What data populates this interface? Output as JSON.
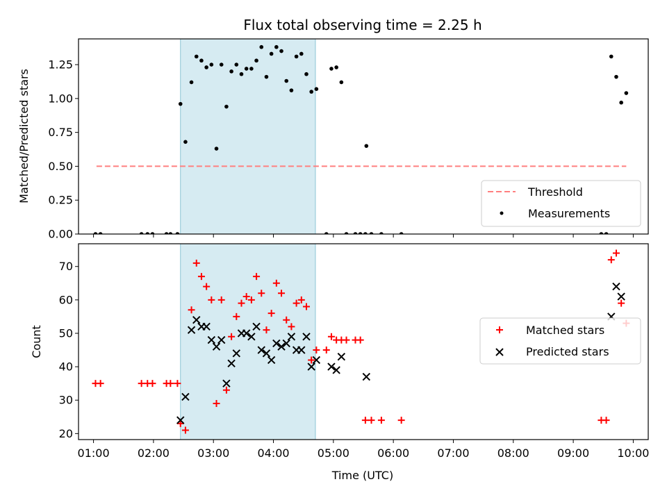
{
  "chart_data": [
    {
      "type": "scatter",
      "title": "Flux total observing time = 2.25 h",
      "ylabel": "Matched/Predicted stars",
      "xlabel": "",
      "xlim": [
        "00:45",
        "10:15"
      ],
      "ylim": [
        0,
        1.44
      ],
      "xticks": [
        "01:00",
        "02:00",
        "03:00",
        "04:00",
        "05:00",
        "06:00",
        "07:00",
        "08:00",
        "09:00",
        "10:00"
      ],
      "yticks": [
        "0.00",
        "0.25",
        "0.50",
        "0.75",
        "1.00",
        "1.25"
      ],
      "yticks_values": [
        0,
        0.25,
        0.5,
        0.75,
        1.0,
        1.25
      ],
      "tick_labels_x_visible": false,
      "shaded_span": {
        "start": "02:27",
        "end": "04:42",
        "color": "#add8e6"
      },
      "threshold": {
        "name": "Threshold",
        "value": 0.5,
        "x_range": [
          "01:03",
          "09:53"
        ],
        "color": "#ff7f7f",
        "style": "dashed"
      },
      "series": [
        {
          "name": "Measurements",
          "marker": "point",
          "color": "#000000",
          "points": [
            [
              "01:02",
              0
            ],
            [
              "01:07",
              0
            ],
            [
              "01:48",
              0
            ],
            [
              "01:54",
              0
            ],
            [
              "01:59",
              0
            ],
            [
              "02:13",
              0
            ],
            [
              "02:17",
              0
            ],
            [
              "02:24",
              0
            ],
            [
              "02:27",
              0.96
            ],
            [
              "02:32",
              0.68
            ],
            [
              "02:38",
              1.12
            ],
            [
              "02:43",
              1.31
            ],
            [
              "02:48",
              1.28
            ],
            [
              "02:53",
              1.23
            ],
            [
              "02:58",
              1.25
            ],
            [
              "03:03",
              0.63
            ],
            [
              "03:08",
              1.25
            ],
            [
              "03:13",
              0.94
            ],
            [
              "03:18",
              1.2
            ],
            [
              "03:23",
              1.25
            ],
            [
              "03:28",
              1.18
            ],
            [
              "03:33",
              1.22
            ],
            [
              "03:38",
              1.22
            ],
            [
              "03:43",
              1.28
            ],
            [
              "03:48",
              1.38
            ],
            [
              "03:53",
              1.16
            ],
            [
              "03:58",
              1.33
            ],
            [
              "04:03",
              1.38
            ],
            [
              "04:08",
              1.35
            ],
            [
              "04:13",
              1.13
            ],
            [
              "04:18",
              1.06
            ],
            [
              "04:23",
              1.31
            ],
            [
              "04:28",
              1.33
            ],
            [
              "04:33",
              1.18
            ],
            [
              "04:38",
              1.05
            ],
            [
              "04:43",
              1.07
            ],
            [
              "04:53",
              0
            ],
            [
              "04:58",
              1.22
            ],
            [
              "05:03",
              1.23
            ],
            [
              "05:08",
              1.12
            ],
            [
              "05:13",
              0
            ],
            [
              "05:22",
              0
            ],
            [
              "05:27",
              0
            ],
            [
              "05:32",
              0
            ],
            [
              "05:33",
              0.65
            ],
            [
              "05:38",
              0
            ],
            [
              "05:48",
              0
            ],
            [
              "06:08",
              0
            ],
            [
              "09:28",
              0
            ],
            [
              "09:33",
              0
            ],
            [
              "09:38",
              1.31
            ],
            [
              "09:43",
              1.16
            ],
            [
              "09:48",
              0.97
            ],
            [
              "09:53",
              1.04
            ]
          ]
        }
      ],
      "legend": {
        "position": "lower-right",
        "entries": [
          "Threshold",
          "Measurements"
        ]
      }
    },
    {
      "type": "scatter",
      "title": "",
      "ylabel": "Count",
      "xlabel": "Time (UTC)",
      "xlim": [
        "00:45",
        "10:15"
      ],
      "ylim": [
        18.2,
        76.8
      ],
      "xticks": [
        "01:00",
        "02:00",
        "03:00",
        "04:00",
        "05:00",
        "06:00",
        "07:00",
        "08:00",
        "09:00",
        "10:00"
      ],
      "yticks": [
        "20",
        "30",
        "40",
        "50",
        "60",
        "70"
      ],
      "yticks_values": [
        20,
        30,
        40,
        50,
        60,
        70
      ],
      "shaded_span": {
        "start": "02:27",
        "end": "04:42",
        "color": "#add8e6"
      },
      "series": [
        {
          "name": "Matched stars",
          "marker": "plus",
          "color": "#ff0000",
          "points": [
            [
              "01:02",
              35
            ],
            [
              "01:07",
              35
            ],
            [
              "01:48",
              35
            ],
            [
              "01:54",
              35
            ],
            [
              "01:59",
              35
            ],
            [
              "02:13",
              35
            ],
            [
              "02:17",
              35
            ],
            [
              "02:24",
              35
            ],
            [
              "02:27",
              23
            ],
            [
              "02:32",
              21
            ],
            [
              "02:38",
              57
            ],
            [
              "02:43",
              71
            ],
            [
              "02:48",
              67
            ],
            [
              "02:53",
              64
            ],
            [
              "02:58",
              60
            ],
            [
              "03:03",
              29
            ],
            [
              "03:08",
              60
            ],
            [
              "03:13",
              33
            ],
            [
              "03:18",
              49
            ],
            [
              "03:23",
              55
            ],
            [
              "03:28",
              59
            ],
            [
              "03:33",
              61
            ],
            [
              "03:38",
              60
            ],
            [
              "03:43",
              67
            ],
            [
              "03:48",
              62
            ],
            [
              "03:53",
              51
            ],
            [
              "03:58",
              56
            ],
            [
              "04:03",
              65
            ],
            [
              "04:08",
              62
            ],
            [
              "04:13",
              54
            ],
            [
              "04:18",
              52
            ],
            [
              "04:23",
              59
            ],
            [
              "04:28",
              60
            ],
            [
              "04:33",
              58
            ],
            [
              "04:38",
              42
            ],
            [
              "04:43",
              45
            ],
            [
              "04:53",
              45
            ],
            [
              "04:58",
              49
            ],
            [
              "05:03",
              48
            ],
            [
              "05:08",
              48
            ],
            [
              "05:13",
              48
            ],
            [
              "05:22",
              48
            ],
            [
              "05:27",
              48
            ],
            [
              "05:32",
              24
            ],
            [
              "05:38",
              24
            ],
            [
              "05:48",
              24
            ],
            [
              "06:08",
              24
            ],
            [
              "09:28",
              24
            ],
            [
              "09:33",
              24
            ],
            [
              "09:38",
              72
            ],
            [
              "09:43",
              74
            ],
            [
              "09:48",
              59
            ],
            [
              "09:53",
              53
            ]
          ]
        },
        {
          "name": "Predicted stars",
          "marker": "x",
          "color": "#000000",
          "points": [
            [
              "02:27",
              24
            ],
            [
              "02:32",
              31
            ],
            [
              "02:38",
              51
            ],
            [
              "02:43",
              54
            ],
            [
              "02:48",
              52
            ],
            [
              "02:53",
              52
            ],
            [
              "02:58",
              48
            ],
            [
              "03:03",
              46
            ],
            [
              "03:08",
              48
            ],
            [
              "03:13",
              35
            ],
            [
              "03:18",
              41
            ],
            [
              "03:23",
              44
            ],
            [
              "03:28",
              50
            ],
            [
              "03:33",
              50
            ],
            [
              "03:38",
              49
            ],
            [
              "03:43",
              52
            ],
            [
              "03:48",
              45
            ],
            [
              "03:53",
              44
            ],
            [
              "03:58",
              42
            ],
            [
              "04:03",
              47
            ],
            [
              "04:08",
              46
            ],
            [
              "04:13",
              47
            ],
            [
              "04:18",
              49
            ],
            [
              "04:23",
              45
            ],
            [
              "04:28",
              45
            ],
            [
              "04:33",
              49
            ],
            [
              "04:38",
              40
            ],
            [
              "04:43",
              42
            ],
            [
              "04:58",
              40
            ],
            [
              "05:03",
              39
            ],
            [
              "05:08",
              43
            ],
            [
              "05:33",
              37
            ],
            [
              "09:38",
              55
            ],
            [
              "09:43",
              64
            ],
            [
              "09:48",
              61
            ]
          ]
        }
      ],
      "legend": {
        "position": "center-right",
        "entries": [
          "Matched stars",
          "Predicted stars"
        ]
      }
    }
  ]
}
